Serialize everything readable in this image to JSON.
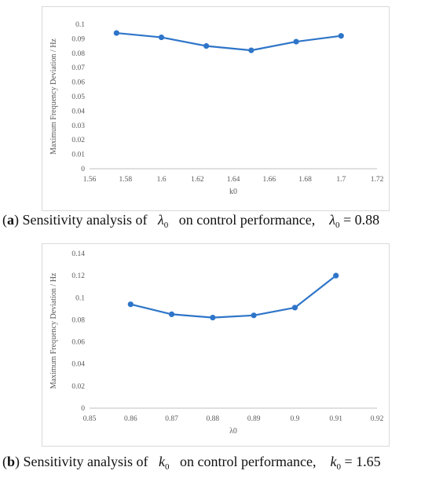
{
  "chart_data": [
    {
      "type": "line",
      "x": [
        1.575,
        1.6,
        1.625,
        1.65,
        1.675,
        1.7
      ],
      "series": [
        {
          "values": [
            0.094,
            0.091,
            0.085,
            0.082,
            0.088,
            0.092
          ]
        }
      ],
      "xlabel": "k0",
      "ylabel": "Maximum Frequency Deviation / Hz",
      "xlim": [
        1.56,
        1.72
      ],
      "ylim": [
        0,
        0.1
      ],
      "xticks": [
        "1.56",
        "1.58",
        "1.6",
        "1.62",
        "1.64",
        "1.66",
        "1.68",
        "1.7",
        "1.72"
      ],
      "yticks": [
        "0",
        "0.01",
        "0.02",
        "0.03",
        "0.04",
        "0.05",
        "0.06",
        "0.07",
        "0.08",
        "0.09",
        "0.1"
      ],
      "grid": false,
      "color": "#2e75c9"
    },
    {
      "type": "line",
      "x": [
        0.86,
        0.87,
        0.88,
        0.89,
        0.9,
        0.91
      ],
      "series": [
        {
          "values": [
            0.094,
            0.085,
            0.082,
            0.084,
            0.091,
            0.12
          ]
        }
      ],
      "xlabel": "λ0",
      "ylabel": "Maximum Frequency Deviation / Hz",
      "xlim": [
        0.85,
        0.92
      ],
      "ylim": [
        0,
        0.14
      ],
      "xticks": [
        "0.85",
        "0.86",
        "0.87",
        "0.88",
        "0.89",
        "0.9",
        "0.91",
        "0.92"
      ],
      "yticks": [
        "0",
        "0.02",
        "0.04",
        "0.06",
        "0.08",
        "0.1",
        "0.12",
        "0.14"
      ],
      "grid": false,
      "color": "#2e75c9"
    }
  ],
  "captions": {
    "a": {
      "letter": "a",
      "text": "Sensitivity analysis of",
      "text2": "on control performance,",
      "symbol": "λ",
      "sub": "0",
      "symbol2": "λ",
      "sub2": "0",
      "value": "= 0.88"
    },
    "b": {
      "letter": "b",
      "text": "Sensitivity analysis of",
      "text2": "on control performance,",
      "symbol": "k",
      "sub": "0",
      "symbol2": "k",
      "sub2": "0",
      "value": "= 1.65"
    }
  }
}
